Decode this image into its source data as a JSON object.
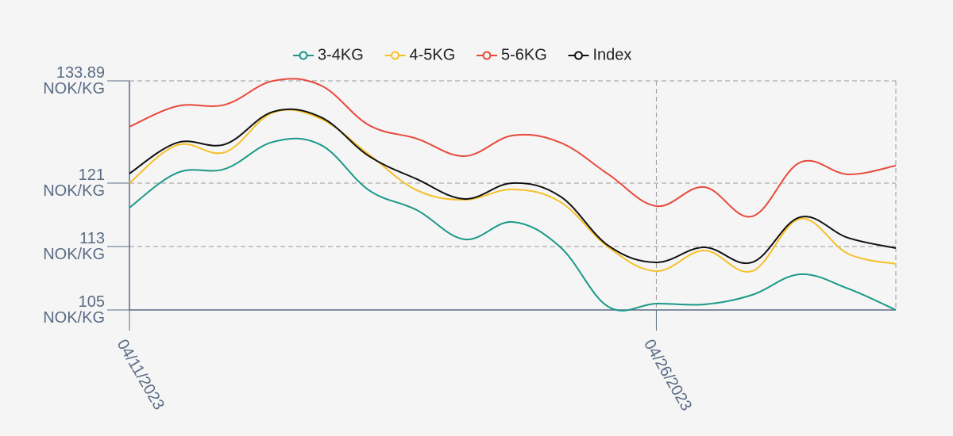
{
  "chart_data": {
    "type": "line",
    "categories": [
      "04/11/2023",
      null,
      null,
      null,
      null,
      null,
      null,
      null,
      null,
      null,
      null,
      "04/26/2023",
      null,
      null,
      null,
      null,
      null
    ],
    "series": [
      {
        "name": "3-4KG",
        "color": "#1a9988",
        "values": [
          117.9,
          122.3,
          122.8,
          126.2,
          125.8,
          120.1,
          117.6,
          113.9,
          116.1,
          112.9,
          105.4,
          105.8,
          105.7,
          106.9,
          109.5,
          107.7,
          105.0
        ]
      },
      {
        "name": "4-5KG",
        "color": "#f5c128",
        "values": [
          121.0,
          125.8,
          124.9,
          129.9,
          129.1,
          124.6,
          120.1,
          118.9,
          120.2,
          118.6,
          112.9,
          109.9,
          112.5,
          109.9,
          116.5,
          112.1,
          110.8
        ]
      },
      {
        "name": "5-6KG",
        "color": "#e8493a",
        "values": [
          128.1,
          130.7,
          130.9,
          133.89,
          133.3,
          128.3,
          126.6,
          124.4,
          127.0,
          126.1,
          122.1,
          118.1,
          120.5,
          116.8,
          123.6,
          122.1,
          123.2
        ]
      },
      {
        "name": "Index",
        "color": "#111111",
        "values": [
          122.2,
          126.1,
          125.9,
          130.0,
          129.3,
          124.4,
          121.5,
          119.0,
          121.0,
          119.3,
          113.1,
          111.0,
          112.9,
          111.0,
          116.7,
          114.1,
          112.8
        ]
      }
    ],
    "ylim": [
      105,
      133.89
    ],
    "yticks": [
      {
        "value": 105,
        "label": "105 NOK/KG"
      },
      {
        "value": 113,
        "label": "113 NOK/KG"
      },
      {
        "value": 121,
        "label": "121 NOK/KG"
      },
      {
        "value": 133.89,
        "label": "133.89 NOK/KG"
      }
    ],
    "grid": true,
    "legend": "top"
  }
}
